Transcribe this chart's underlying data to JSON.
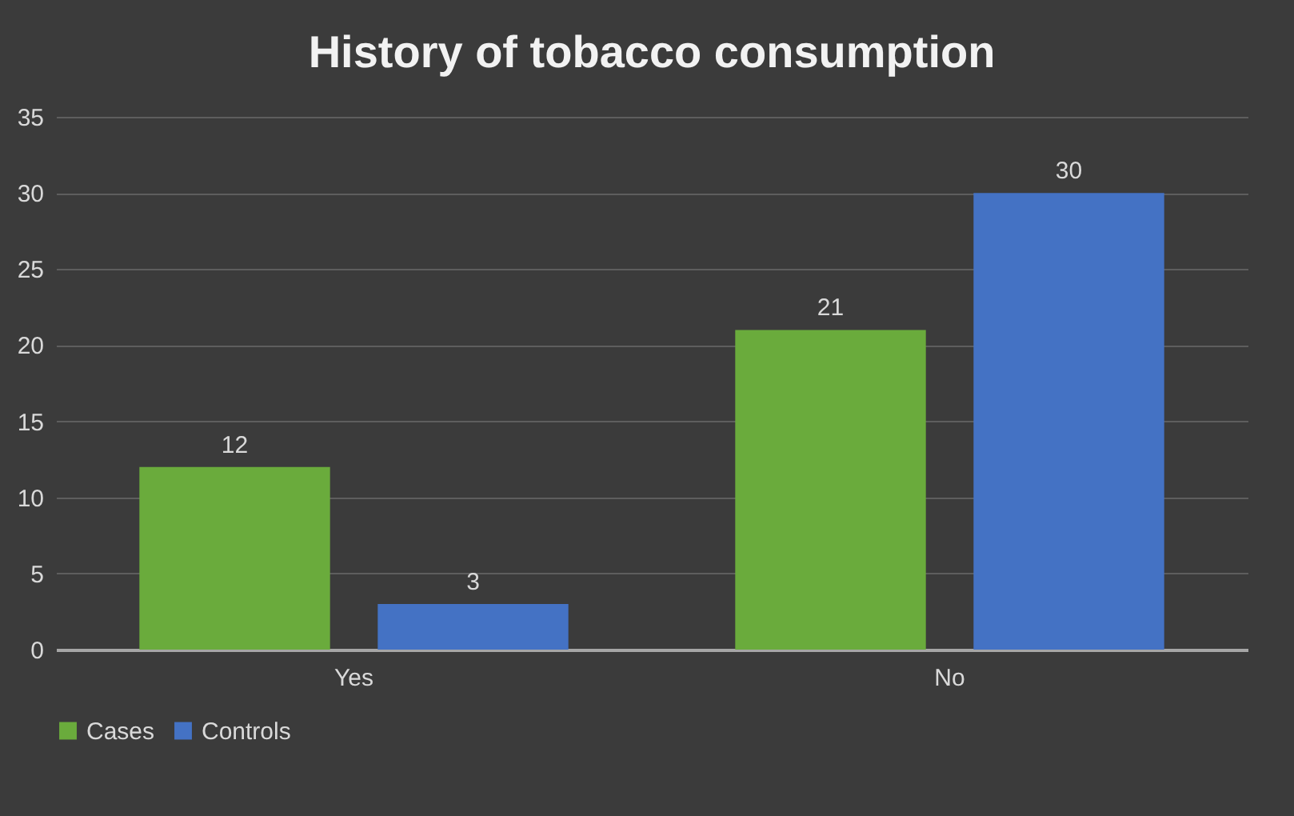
{
  "chart_data": {
    "type": "bar",
    "title": "History of tobacco consumption",
    "categories": [
      "Yes",
      "No"
    ],
    "series": [
      {
        "name": "Cases",
        "color": "#6aab3c",
        "values": [
          12,
          21
        ]
      },
      {
        "name": "Controls",
        "color": "#4472c4",
        "values": [
          3,
          30
        ]
      }
    ],
    "ylim": [
      0,
      35
    ],
    "yticks": [
      0,
      5,
      10,
      15,
      20,
      25,
      30,
      35
    ],
    "grid": "y",
    "legend": "bottom",
    "data_labels": true
  }
}
